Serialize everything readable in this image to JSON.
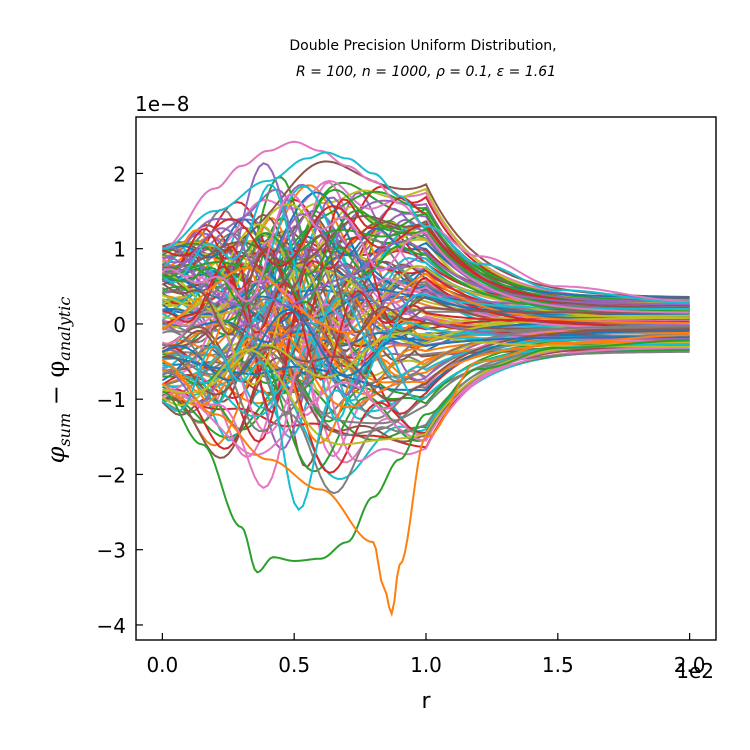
{
  "chart_data": {
    "type": "line",
    "title_line1": "Double Precision Uniform Distribution,",
    "title_line2": "R = 100, n = 1000, ρ = 0.1, ε = 1.61",
    "xlabel": "r",
    "ylabel_main": "φ",
    "ylabel_sub1": "sum",
    "ylabel_op": " − φ",
    "ylabel_sub2": "analytic",
    "x_multiplier": "1e2",
    "y_multiplier": "1e−8",
    "xlim": [
      -0.1,
      2.1
    ],
    "ylim": [
      -4.2,
      2.75
    ],
    "x_ticks": [
      0.0,
      0.5,
      1.0,
      1.5,
      2.0
    ],
    "x_tick_labels": [
      "0.0",
      "0.5",
      "1.0",
      "1.5",
      "2.0"
    ],
    "y_ticks": [
      -4,
      -3,
      -2,
      -1,
      0,
      1,
      2
    ],
    "y_tick_labels": [
      "−4",
      "−3",
      "−2",
      "−1",
      "0",
      "1",
      "2"
    ],
    "grid": false,
    "legend": "none",
    "colors": [
      "#1f77b4",
      "#ff7f0e",
      "#2ca02c",
      "#d62728",
      "#9467bd",
      "#8c564b",
      "#e377c2",
      "#7f7f7f",
      "#bcbd22",
      "#17becf"
    ],
    "series_count_rendered": 140,
    "highlighted_series": [
      {
        "color": "#2ca02c",
        "x": [
          0.0,
          0.15,
          0.3,
          0.36,
          0.42,
          0.5,
          0.6,
          0.7,
          0.8,
          0.9,
          1.0,
          1.2,
          1.5,
          2.0
        ],
        "y": [
          -0.9,
          -1.6,
          -2.7,
          -3.3,
          -3.1,
          -3.15,
          -3.12,
          -2.9,
          -2.3,
          -1.8,
          -1.2,
          -0.6,
          -0.32,
          -0.22
        ]
      },
      {
        "color": "#ff7f0e",
        "x": [
          0.0,
          0.2,
          0.4,
          0.6,
          0.8,
          0.84,
          0.87,
          0.9,
          1.0,
          1.2,
          1.5,
          2.0
        ],
        "y": [
          -0.5,
          -1.2,
          -1.8,
          -2.2,
          -2.9,
          -3.5,
          -3.85,
          -3.2,
          -1.5,
          -0.5,
          -0.25,
          -0.15
        ]
      },
      {
        "color": "#e377c2",
        "x": [
          0.0,
          0.2,
          0.3,
          0.4,
          0.5,
          0.6,
          0.7,
          0.8,
          0.9,
          1.0,
          1.2,
          1.5,
          2.0
        ],
        "y": [
          1.0,
          1.8,
          2.1,
          2.3,
          2.42,
          2.3,
          2.1,
          1.9,
          1.6,
          1.3,
          0.9,
          0.5,
          0.3
        ]
      },
      {
        "color": "#17becf",
        "x": [
          0.0,
          0.2,
          0.4,
          0.55,
          0.62,
          0.7,
          0.8,
          0.9,
          1.0,
          1.2,
          1.5,
          2.0
        ],
        "y": [
          1.0,
          1.5,
          1.9,
          2.2,
          2.28,
          2.2,
          2.0,
          1.7,
          1.3,
          0.8,
          0.45,
          0.28
        ]
      }
    ]
  }
}
